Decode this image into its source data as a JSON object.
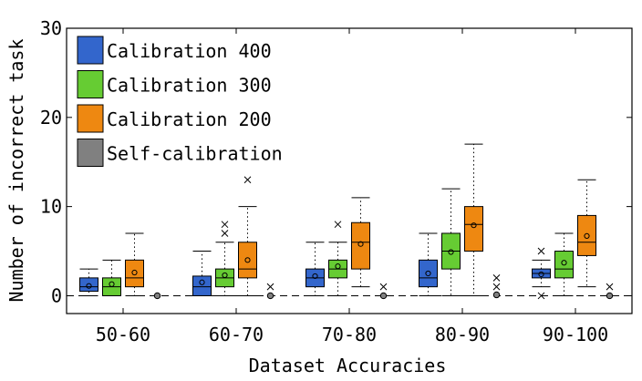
{
  "chart_data": {
    "type": "boxplot",
    "xlabel": "Dataset Accuracies",
    "ylabel": "Number of incorrect task",
    "ylim": [
      -2,
      30
    ],
    "yticks": [
      0,
      10,
      20,
      30
    ],
    "categories": [
      "50-60",
      "60-70",
      "70-80",
      "80-90",
      "90-100"
    ],
    "grid": false,
    "legend_position": "top-left",
    "series": [
      {
        "name": "Calibration 400",
        "color": "#3366cc",
        "boxes": [
          {
            "whisker_low": 0,
            "q1": 0.5,
            "median": 1.0,
            "q3": 2.0,
            "whisker_high": 3.0,
            "mean": 1.1,
            "outliers": []
          },
          {
            "whisker_low": 0,
            "q1": 0.0,
            "median": 1.0,
            "q3": 2.2,
            "whisker_high": 5.0,
            "mean": 1.5,
            "outliers": []
          },
          {
            "whisker_low": 0,
            "q1": 1.0,
            "median": 2.0,
            "q3": 3.0,
            "whisker_high": 6.0,
            "mean": 2.2,
            "outliers": []
          },
          {
            "whisker_low": 0,
            "q1": 1.0,
            "median": 2.0,
            "q3": 4.0,
            "whisker_high": 7.0,
            "mean": 2.5,
            "outliers": []
          },
          {
            "whisker_low": 1,
            "q1": 2.0,
            "median": 2.5,
            "q3": 3.0,
            "whisker_high": 4.0,
            "mean": 2.4,
            "outliers": [
              0,
              5
            ]
          }
        ]
      },
      {
        "name": "Calibration 300",
        "color": "#66cc33",
        "boxes": [
          {
            "whisker_low": 0,
            "q1": 0.0,
            "median": 1.0,
            "q3": 2.0,
            "whisker_high": 4.0,
            "mean": 1.3,
            "outliers": []
          },
          {
            "whisker_low": 0,
            "q1": 1.0,
            "median": 2.0,
            "q3": 3.0,
            "whisker_high": 6.0,
            "mean": 2.3,
            "outliers": [
              7,
              8
            ]
          },
          {
            "whisker_low": 0,
            "q1": 2.0,
            "median": 3.0,
            "q3": 4.0,
            "whisker_high": 6.0,
            "mean": 3.3,
            "outliers": [
              8
            ]
          },
          {
            "whisker_low": 0,
            "q1": 3.0,
            "median": 5.0,
            "q3": 7.0,
            "whisker_high": 12.0,
            "mean": 4.9,
            "outliers": []
          },
          {
            "whisker_low": 0,
            "q1": 2.0,
            "median": 3.0,
            "q3": 5.0,
            "whisker_high": 7.0,
            "mean": 3.7,
            "outliers": []
          }
        ]
      },
      {
        "name": "Calibration 200",
        "color": "#ee8811",
        "boxes": [
          {
            "whisker_low": 0,
            "q1": 1.0,
            "median": 2.0,
            "q3": 4.0,
            "whisker_high": 7.0,
            "mean": 2.6,
            "outliers": []
          },
          {
            "whisker_low": 0,
            "q1": 2.0,
            "median": 3.0,
            "q3": 6.0,
            "whisker_high": 10.0,
            "mean": 4.0,
            "outliers": [
              13
            ]
          },
          {
            "whisker_low": 1,
            "q1": 3.0,
            "median": 6.0,
            "q3": 8.2,
            "whisker_high": 11.0,
            "mean": 5.8,
            "outliers": []
          },
          {
            "whisker_low": 0,
            "q1": 5.0,
            "median": 8.0,
            "q3": 10.0,
            "whisker_high": 17.0,
            "mean": 7.9,
            "outliers": []
          },
          {
            "whisker_low": 1,
            "q1": 4.5,
            "median": 6.0,
            "q3": 9.0,
            "whisker_high": 13.0,
            "mean": 6.7,
            "outliers": []
          }
        ]
      },
      {
        "name": "Self-calibration",
        "color": "#808080",
        "boxes": [
          {
            "whisker_low": 0,
            "q1": 0,
            "median": 0,
            "q3": 0,
            "whisker_high": 0,
            "mean": 0,
            "outliers": []
          },
          {
            "whisker_low": 0,
            "q1": 0,
            "median": 0,
            "q3": 0,
            "whisker_high": 0,
            "mean": 0,
            "outliers": [
              1
            ]
          },
          {
            "whisker_low": 0,
            "q1": 0,
            "median": 0,
            "q3": 0,
            "whisker_high": 0,
            "mean": 0,
            "outliers": [
              1
            ]
          },
          {
            "whisker_low": 0,
            "q1": 0,
            "median": 0,
            "q3": 0,
            "whisker_high": 0,
            "mean": 0.1,
            "outliers": [
              1,
              2
            ]
          },
          {
            "whisker_low": 0,
            "q1": 0,
            "median": 0,
            "q3": 0,
            "whisker_high": 0,
            "mean": 0,
            "outliers": [
              1
            ]
          }
        ]
      }
    ]
  }
}
